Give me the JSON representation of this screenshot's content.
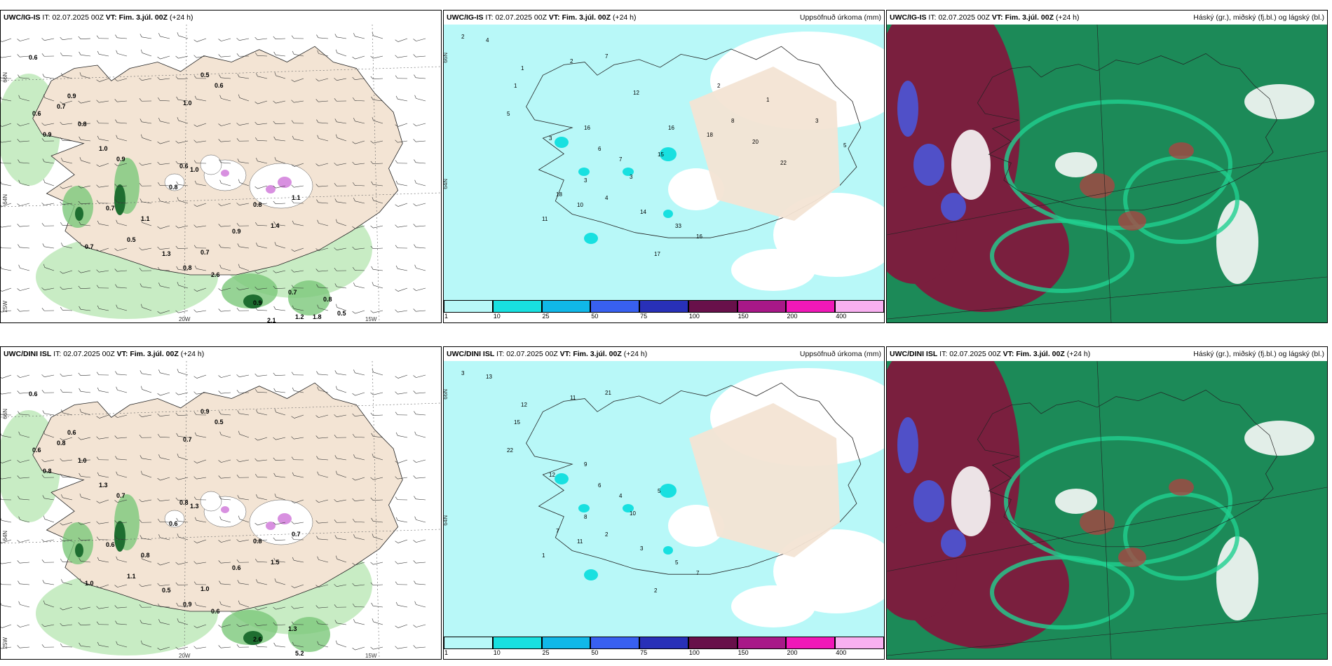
{
  "panels": [
    {
      "id": "p11",
      "model": "UWC/IG-IS",
      "it_label": "IT:",
      "it_value": "02.07.2025 00Z",
      "vt_label": "VT:",
      "vt_value": "Fim. 3.júl. 00Z",
      "lead": "(+24 h)",
      "right_title": "",
      "lat_labels": [
        "66N",
        "64N"
      ],
      "lon_labels": [
        "25W",
        "20W",
        "15W"
      ],
      "values": [
        "0.6",
        "0.7",
        "0.6",
        "0.8",
        "0.9",
        "1.0",
        "0.9",
        "1.0",
        "0.5",
        "0.6",
        "0.9",
        "0.6",
        "1.0",
        "0.8",
        "0.8",
        "1.1",
        "1.4",
        "0.9",
        "0.7",
        "0.8",
        "2.6",
        "0.7",
        "1.2",
        "0.9",
        "1.3",
        "0.7",
        "1.1",
        "0.5",
        "0.7",
        "0.8",
        "1.8",
        "2.1",
        "0.5"
      ]
    },
    {
      "id": "p12",
      "model": "UWC/IG-IS",
      "it_label": "IT:",
      "it_value": "02.07.2025 00Z",
      "vt_label": "VT:",
      "vt_value": "Fim. 3.júl. 00Z",
      "lead": "(+24 h)",
      "right_title": "Uppsöfnuð úrkoma (mm)",
      "lat_labels": [
        "66N",
        "64N"
      ],
      "values": [
        "2",
        "4",
        "1",
        "2",
        "7",
        "1",
        "5",
        "3",
        "16",
        "7",
        "15",
        "6",
        "3",
        "18",
        "10",
        "11",
        "4",
        "3",
        "14",
        "33",
        "16",
        "17",
        "16",
        "18",
        "8",
        "20",
        "22",
        "12",
        "2",
        "1",
        "3",
        "5"
      ]
    },
    {
      "id": "p13",
      "model": "UWC/IG-IS",
      "it_label": "IT:",
      "it_value": "02.07.2025 00Z",
      "vt_label": "VT:",
      "vt_value": "Fim. 3.júl. 00Z",
      "lead": "(+24 h)",
      "right_title": "Háský (gr.), miðský (fj.bl.) og lágský (bl.)"
    },
    {
      "id": "p21",
      "model": "UWC/DINI ISL",
      "it_label": "IT:",
      "it_value": "02.07.2025 00Z",
      "vt_label": "VT:",
      "vt_value": "Fim. 3.júl. 00Z",
      "lead": "(+24 h)",
      "right_title": "",
      "lat_labels": [
        "66N",
        "64N"
      ],
      "lon_labels": [
        "25W",
        "20W",
        "15W"
      ],
      "values": [
        "0.6",
        "0.8",
        "0.6",
        "1.0",
        "0.8",
        "1.3",
        "0.6",
        "0.7",
        "0.9",
        "0.5",
        "0.7",
        "0.8",
        "1.3",
        "0.6",
        "0.8",
        "0.7",
        "1.5",
        "0.6",
        "1.0",
        "0.9",
        "0.6",
        "1.3",
        "5.2",
        "2.6",
        "0.5",
        "0.6",
        "0.8",
        "1.1",
        "1.0"
      ]
    },
    {
      "id": "p22",
      "model": "UWC/DINI ISL",
      "it_label": "IT:",
      "it_value": "02.07.2025 00Z",
      "vt_label": "VT:",
      "vt_value": "Fim. 3.júl. 00Z",
      "lead": "(+24 h)",
      "right_title": "Uppsöfnuð úrkoma (mm)",
      "lat_labels": [
        "66N",
        "64N"
      ],
      "values": [
        "3",
        "13",
        "12",
        "11",
        "21",
        "15",
        "22",
        "12",
        "9",
        "4",
        "5",
        "6",
        "8",
        "7",
        "11",
        "1",
        "2",
        "10",
        "3",
        "5",
        "7",
        "2"
      ]
    },
    {
      "id": "p23",
      "model": "UWC/DINI ISL",
      "it_label": "IT:",
      "it_value": "02.07.2025 00Z",
      "vt_label": "VT:",
      "vt_value": "Fim. 3.júl. 00Z",
      "lead": "(+24 h)",
      "right_title": "Háský (gr.), miðský (fj.bl.) og lágský (bl.)"
    }
  ],
  "legend": {
    "ticks": [
      "1",
      "10",
      "25",
      "50",
      "75",
      "100",
      "150",
      "200",
      "400"
    ],
    "colors": [
      "#b8f8f8",
      "#18e0e0",
      "#10b8e8",
      "#3860f0",
      "#2830b8",
      "#68104a",
      "#a81888",
      "#f018b8",
      "#f8b0f0"
    ]
  },
  "colors": {
    "land": "#f3e4d4",
    "precip_light": "#c8ecc4",
    "precip_mid": "#7cc87a",
    "precip_dark": "#1e6e30",
    "snow_pink": "#d890e0",
    "water_rain": "#b8f8f8",
    "cloud_high": "#1c8a58",
    "cloud_mid": "#7a1f3e",
    "cloud_low": "#5050c8",
    "cloud_bright": "#20d090"
  }
}
